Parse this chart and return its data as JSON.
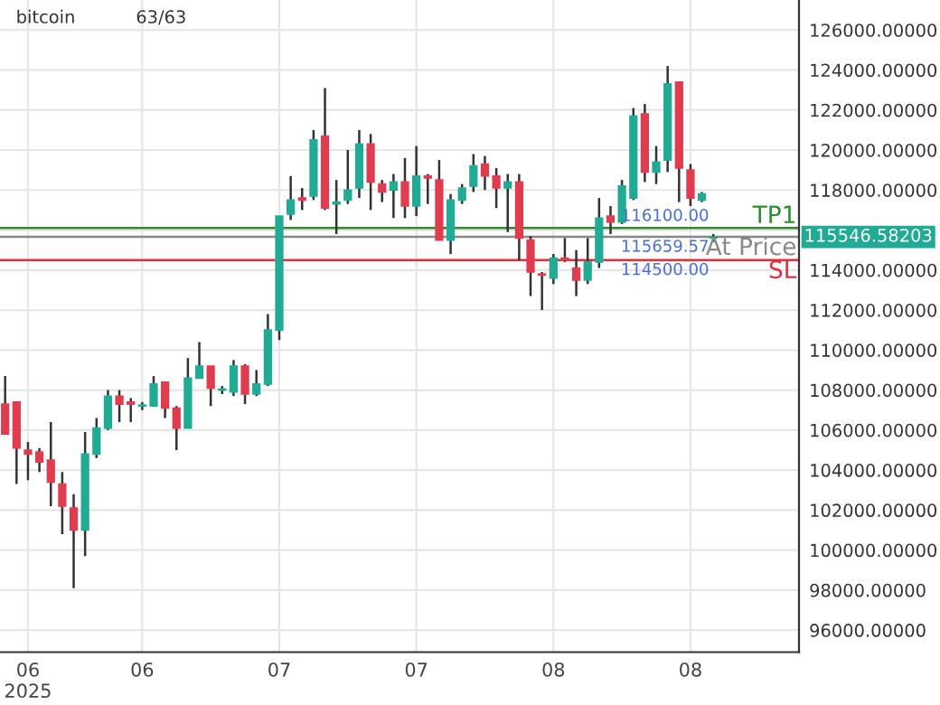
{
  "chart_data": {
    "type": "candlestick",
    "title": "bitcoin",
    "annotations": [
      "63/63",
      {
        "text": "116100.00",
        "y": 116100
      },
      {
        "text": "115659.57",
        "y": 115659.57
      },
      {
        "text": "114500.00",
        "y": 114500
      },
      "115546.58203"
    ],
    "categories": [
      null,
      null,
      "06\n2025",
      null,
      null,
      null,
      null,
      null,
      null,
      null,
      null,
      null,
      "06",
      null,
      null,
      null,
      null,
      null,
      null,
      null,
      null,
      null,
      null,
      null,
      "07",
      null,
      null,
      null,
      null,
      null,
      null,
      null,
      null,
      null,
      null,
      null,
      "07",
      null,
      null,
      null,
      null,
      null,
      null,
      null,
      null,
      null,
      null,
      null,
      "08",
      null,
      null,
      null,
      null,
      null,
      null,
      null,
      null,
      null,
      null,
      null,
      "08",
      null,
      null,
      null,
      null,
      null,
      null,
      null,
      null,
      null
    ],
    "ohlc": [
      [
        107300,
        108700,
        105800,
        105800
      ],
      [
        107400,
        107400,
        103300,
        105100
      ],
      [
        105000,
        105400,
        103500,
        104800
      ],
      [
        104900,
        105100,
        103900,
        104400
      ],
      [
        104500,
        106400,
        102200,
        103400
      ],
      [
        103300,
        103900,
        100800,
        102200
      ],
      [
        102100,
        102800,
        98100,
        101000
      ],
      [
        101000,
        105900,
        99700,
        104800
      ],
      [
        104800,
        106600,
        104600,
        106100
      ],
      [
        106100,
        108000,
        106000,
        107700
      ],
      [
        107700,
        108000,
        106400,
        107300
      ],
      [
        107400,
        107600,
        106400,
        107300
      ],
      [
        107200,
        107400,
        107000,
        107250
      ],
      [
        107200,
        108700,
        107200,
        108300
      ],
      [
        108400,
        108400,
        106600,
        107100
      ],
      [
        107100,
        107200,
        105000,
        106100
      ],
      [
        106100,
        109600,
        106100,
        108600
      ],
      [
        108600,
        110400,
        108600,
        109200
      ],
      [
        109200,
        109200,
        107200,
        108100
      ],
      [
        108000,
        108200,
        107800,
        108050
      ],
      [
        107900,
        109500,
        107700,
        109200
      ],
      [
        109200,
        109300,
        107300,
        107800
      ],
      [
        107800,
        109000,
        107700,
        108300
      ],
      [
        108300,
        111800,
        108200,
        111000
      ],
      [
        111000,
        116700,
        110500,
        116700
      ],
      [
        116800,
        118700,
        116500,
        117500
      ],
      [
        117600,
        118100,
        117000,
        117500
      ],
      [
        117700,
        121000,
        117500,
        120500
      ],
      [
        120700,
        123100,
        117000,
        117100
      ],
      [
        117300,
        118500,
        115800,
        117400
      ],
      [
        117500,
        120000,
        117300,
        118000
      ],
      [
        118100,
        121000,
        117600,
        120300
      ],
      [
        120300,
        120800,
        117000,
        118400
      ],
      [
        118300,
        118500,
        117400,
        117900
      ],
      [
        118000,
        118800,
        116600,
        118400
      ],
      [
        118400,
        119600,
        116600,
        117200
      ],
      [
        117200,
        120200,
        116700,
        118700
      ],
      [
        118700,
        118800,
        117300,
        118600
      ],
      [
        118500,
        119500,
        115500,
        115500
      ],
      [
        115500,
        117800,
        114800,
        117500
      ],
      [
        117500,
        118300,
        117300,
        118100
      ],
      [
        118200,
        119800,
        117900,
        119200
      ],
      [
        119300,
        119700,
        118000,
        118700
      ],
      [
        118700,
        119100,
        117100,
        118100
      ],
      [
        118100,
        118800,
        115900,
        118400
      ],
      [
        118400,
        118800,
        114500,
        115600
      ],
      [
        115500,
        115700,
        112700,
        113900
      ],
      [
        113800,
        113900,
        112000,
        113750
      ],
      [
        113600,
        114800,
        113300,
        114600
      ],
      [
        114600,
        115600,
        114400,
        114500
      ],
      [
        114100,
        115000,
        112700,
        113500
      ],
      [
        113500,
        115600,
        113300,
        114400
      ],
      [
        114400,
        117600,
        114100,
        116600
      ],
      [
        116700,
        117200,
        115800,
        116400
      ],
      [
        116400,
        118500,
        116300,
        118200
      ],
      [
        117600,
        122100,
        117500,
        121700
      ],
      [
        121800,
        122300,
        118400,
        118900
      ],
      [
        118900,
        120200,
        118300,
        119400
      ],
      [
        119500,
        124200,
        118900,
        123300
      ],
      [
        123400,
        123400,
        117400,
        119100
      ],
      [
        119000,
        119300,
        117200,
        117600
      ],
      [
        117500,
        117900,
        117400,
        117800
      ],
      [
        115600,
        115800,
        115400,
        115650
      ],
      null,
      null,
      null,
      null,
      null,
      null,
      null
    ],
    "colors": [
      "#e03c4f",
      "#e03c4f",
      "#e03c4f",
      "#e03c4f",
      "#e03c4f",
      "#e03c4f",
      "#e03c4f",
      "#22ab94",
      "#22ab94",
      "#22ab94",
      "#e03c4f",
      "#e03c4f",
      "#22ab94",
      "#22ab94",
      "#e03c4f",
      "#e03c4f",
      "#22ab94",
      "#22ab94",
      "#e03c4f",
      "#22ab94",
      "#22ab94",
      "#e03c4f",
      "#22ab94",
      "#22ab94",
      "#22ab94",
      "#22ab94",
      "#e03c4f",
      "#22ab94",
      "#e03c4f",
      "#22ab94",
      "#22ab94",
      "#22ab94",
      "#e03c4f",
      "#e03c4f",
      "#22ab94",
      "#e03c4f",
      "#22ab94",
      "#e03c4f",
      "#e03c4f",
      "#22ab94",
      "#22ab94",
      "#22ab94",
      "#e03c4f",
      "#e03c4f",
      "#22ab94",
      "#e03c4f",
      "#e03c4f",
      "#e03c4f",
      "#22ab94",
      "#e03c4f",
      "#e03c4f",
      "#22ab94",
      "#22ab94",
      "#e03c4f",
      "#22ab94",
      "#22ab94",
      "#e03c4f",
      "#22ab94",
      "#22ab94",
      "#e03c4f",
      "#e03c4f",
      "#22ab94",
      "#22ab94",
      null,
      null,
      null,
      null,
      null,
      null,
      null
    ],
    "ref_lines": [
      {
        "axis": "y",
        "value": 116100,
        "label": "TP1",
        "color": "#2e8b2e"
      },
      {
        "axis": "y",
        "value": 115659.57,
        "label": "At Price",
        "color": "#888888"
      },
      {
        "axis": "y",
        "value": 114500,
        "label": "SL",
        "color": "#e0303a"
      }
    ],
    "ylim": [
      94900,
      127500
    ],
    "yticks": [
      {
        "value": 96000,
        "label": "96000.00000"
      },
      {
        "value": 98000,
        "label": "98000.00000"
      },
      {
        "value": 100000,
        "label": "100000.00000"
      },
      {
        "value": 102000,
        "label": "102000.00000"
      },
      {
        "value": 104000,
        "label": "104000.00000"
      },
      {
        "value": 106000,
        "label": "106000.00000"
      },
      {
        "value": 108000,
        "label": "108000.00000"
      },
      {
        "value": 110000,
        "label": "110000.00000"
      },
      {
        "value": 112000,
        "label": "112000.00000"
      },
      {
        "value": 114000,
        "label": "114000.00000"
      },
      {
        "value": 116000,
        "label": null
      },
      {
        "value": 118000,
        "label": "118000.00000"
      },
      {
        "value": 120000,
        "label": "120000.00000"
      },
      {
        "value": 122000,
        "label": "122000.00000"
      },
      {
        "value": 124000,
        "label": "124000.00000"
      },
      {
        "value": 126000,
        "label": "126000.00000"
      }
    ],
    "grid": true
  }
}
